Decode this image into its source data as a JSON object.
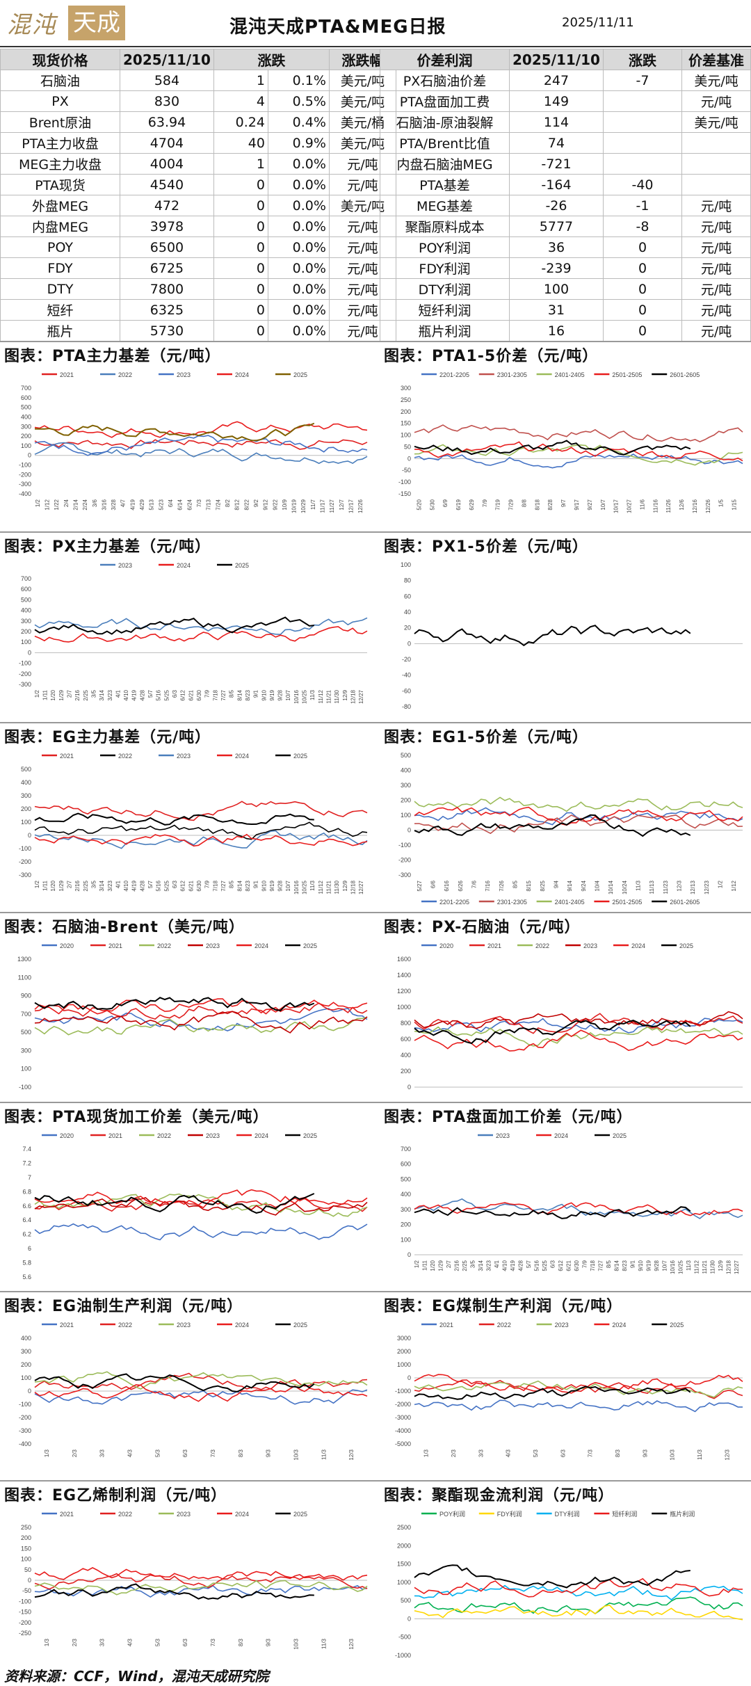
{
  "header": {
    "logo_text_1": "混沌",
    "logo_text_2": "天成",
    "title": "混沌天成PTA&MEG日报",
    "date": "2025/11/11"
  },
  "left_table": {
    "headers": [
      "现货价格",
      "2025/11/10",
      "涨跌",
      "",
      "涨跌幅"
    ],
    "rows": [
      [
        "石脑油",
        "584",
        "1",
        "0.1%",
        "美元/吨"
      ],
      [
        "PX",
        "830",
        "4",
        "0.5%",
        "美元/吨"
      ],
      [
        "Brent原油",
        "63.94",
        "0.24",
        "0.4%",
        "美元/桶"
      ],
      [
        "PTA主力收盘",
        "4704",
        "40",
        "0.9%",
        "美元/吨"
      ],
      [
        "MEG主力收盘",
        "4004",
        "1",
        "0.0%",
        "元/吨"
      ],
      [
        "PTA现货",
        "4540",
        "0",
        "0.0%",
        "元/吨"
      ],
      [
        "外盘MEG",
        "472",
        "0",
        "0.0%",
        "美元/吨"
      ],
      [
        "内盘MEG",
        "3978",
        "0",
        "0.0%",
        "元/吨"
      ],
      [
        "POY",
        "6500",
        "0",
        "0.0%",
        "元/吨"
      ],
      [
        "FDY",
        "6725",
        "0",
        "0.0%",
        "元/吨"
      ],
      [
        "DTY",
        "7800",
        "0",
        "0.0%",
        "元/吨"
      ],
      [
        "短纤",
        "6325",
        "0",
        "0.0%",
        "元/吨"
      ],
      [
        "瓶片",
        "5730",
        "0",
        "0.0%",
        "元/吨"
      ]
    ]
  },
  "right_table": {
    "headers": [
      "价差利润",
      "2025/11/10",
      "涨跌",
      "价差基准"
    ],
    "rows": [
      [
        "PX石脑油价差",
        "247",
        "-7",
        "美元/吨"
      ],
      [
        "PTA盘面加工费",
        "149",
        "",
        "元/吨"
      ],
      [
        "石脑油-原油裂解",
        "114",
        "",
        "美元/吨"
      ],
      [
        "PTA/Brent比值",
        "74",
        "",
        ""
      ],
      [
        "内盘石脑油MEG",
        "-721",
        "",
        ""
      ],
      [
        "PTA基差",
        "-164",
        "-40",
        ""
      ],
      [
        "MEG基差",
        "-26",
        "-1",
        "元/吨"
      ],
      [
        "聚酯原料成本",
        "5777",
        "-8",
        "元/吨"
      ],
      [
        "POY利润",
        "36",
        "0",
        "元/吨"
      ],
      [
        "FDY利润",
        "-239",
        "0",
        "元/吨"
      ],
      [
        "DTY利润",
        "100",
        "0",
        "元/吨"
      ],
      [
        "短纤利润",
        "31",
        "0",
        "元/吨"
      ],
      [
        "瓶片利润",
        "16",
        "0",
        "元/吨"
      ]
    ]
  },
  "sections": [
    "图表：PTA主力基差（元/吨）",
    "图表：PTA1-5价差（元/吨）",
    "图表：PX主力基差（元/吨）",
    "图表：PX1-5价差（元/吨）",
    "图表：EG主力基差（元/吨）",
    "图表：EG1-5价差（元/吨）",
    "图表：石脑油-Brent（美元/吨）",
    "图表：PX-石脑油（元/吨）",
    "图表：PTA现货加工价差（美元/吨）",
    "图表：PTA盘面加工价差（元/吨）",
    "图表：EG油制生产利润（元/吨）",
    "图表：EG煤制生产利润（元/吨）",
    "图表：EG乙烯制利润（元/吨）",
    "图表：聚酯现金流利润（元/吨）"
  ],
  "source": "资料来源：CCF，Wind，混沌天成研究院",
  "colors": {
    "2020": "#4472c4",
    "2021": "#e02020",
    "2022": "#9bbb59",
    "2023": "#4a7ebb",
    "2024": "#e81c1c",
    "2025": "#000000",
    "alt": "#7f6000",
    "orange": "#ed7d31",
    "yellow": "#ffd700",
    "green": "#00b050",
    "cyan": "#00b0f0"
  },
  "chart_data": [
    {
      "type": "line",
      "legend": [
        "2021",
        "2022",
        "2023",
        "2024",
        "2025"
      ],
      "yticks": [
        700,
        600,
        500,
        400,
        300,
        200,
        100,
        0,
        -100,
        -200,
        -300,
        -400
      ],
      "ylim": [
        -400,
        700
      ],
      "xticks": [
        "1/2",
        "1/12",
        "1/22",
        "2/4",
        "2/14",
        "2/24",
        "3/6",
        "3/16",
        "3/28",
        "4/7",
        "4/19",
        "4/29",
        "5/13",
        "5/23",
        "6/4",
        "6/14",
        "6/24",
        "7/3",
        "7/13",
        "7/24",
        "8/2",
        "8/12",
        "8/22",
        "9/2",
        "9/12",
        "9/22",
        "10/9",
        "10/19",
        "10/29",
        "11/7",
        "11/17",
        "11/27",
        "12/7",
        "12/17",
        "12/26"
      ],
      "series_colors": [
        "#e02020",
        "#4a7ebb",
        "#4472c4",
        "#e81c1c",
        "#7f6000"
      ]
    },
    {
      "type": "line",
      "legend": [
        "2201-2205",
        "2301-2305",
        "2401-2405",
        "2501-2505",
        "2601-2605"
      ],
      "yticks": [
        300,
        250,
        200,
        150,
        100,
        50,
        0,
        -50,
        -100,
        -150
      ],
      "ylim": [
        -150,
        300
      ],
      "xticks": [
        "5/20",
        "5/30",
        "6/9",
        "6/19",
        "6/29",
        "7/9",
        "7/19",
        "7/29",
        "8/8",
        "8/18",
        "8/28",
        "9/7",
        "9/17",
        "9/27",
        "10/7",
        "10/17",
        "10/27",
        "11/6",
        "11/16",
        "11/26",
        "12/6",
        "12/16",
        "12/26",
        "1/5",
        "1/15"
      ],
      "series_colors": [
        "#4472c4",
        "#c0504d",
        "#9bbb59",
        "#e81c1c",
        "#000000"
      ]
    },
    {
      "type": "line",
      "legend": [
        "2023",
        "2024",
        "2025"
      ],
      "yticks": [
        700,
        600,
        500,
        400,
        300,
        200,
        100,
        0,
        -100,
        -200,
        -300
      ],
      "ylim": [
        -300,
        700
      ],
      "xticks": [
        "1/2",
        "1/11",
        "1/20",
        "1/29",
        "2/7",
        "2/16",
        "2/25",
        "3/5",
        "3/14",
        "3/23",
        "4/1",
        "4/10",
        "4/19",
        "4/28",
        "5/7",
        "5/16",
        "5/25",
        "6/3",
        "6/12",
        "6/21",
        "6/30",
        "7/9",
        "7/18",
        "7/27",
        "8/5",
        "8/14",
        "8/23",
        "9/1",
        "9/10",
        "9/19",
        "9/28",
        "10/7",
        "10/16",
        "10/25",
        "11/3",
        "11/12",
        "11/21",
        "11/30",
        "12/9",
        "12/18",
        "12/27"
      ],
      "series_colors": [
        "#4a7ebb",
        "#e81c1c",
        "#000000"
      ]
    },
    {
      "type": "line",
      "legend": [],
      "yticks": [
        100,
        80,
        60,
        40,
        20,
        0,
        -20,
        -40,
        -60,
        -80
      ],
      "ylim": [
        -80,
        100
      ],
      "xticks": [],
      "series_colors": [
        "#000000"
      ]
    },
    {
      "type": "line",
      "legend": [
        "2021",
        "2022",
        "2023",
        "2024",
        "2025"
      ],
      "yticks": [
        500,
        400,
        300,
        200,
        100,
        0,
        -100,
        -200,
        -300
      ],
      "ylim": [
        -300,
        500
      ],
      "xticks": [
        "1/2",
        "1/11",
        "1/20",
        "1/29",
        "2/7",
        "2/16",
        "2/25",
        "3/5",
        "3/14",
        "3/23",
        "4/1",
        "4/10",
        "4/19",
        "4/28",
        "5/7",
        "5/16",
        "5/25",
        "6/3",
        "6/12",
        "6/21",
        "6/30",
        "7/9",
        "7/18",
        "7/27",
        "8/5",
        "8/14",
        "8/23",
        "9/1",
        "9/10",
        "9/19",
        "9/28",
        "10/7",
        "10/16",
        "10/25",
        "11/3",
        "11/12",
        "11/21",
        "11/30",
        "12/9",
        "12/18",
        "12/27"
      ],
      "series_colors": [
        "#e02020",
        "#000000",
        "#4a7ebb",
        "#e81c1c",
        "#000000"
      ]
    },
    {
      "type": "line",
      "legend": [
        "2201-2205",
        "2301-2305",
        "2401-2405",
        "2501-2505",
        "2601-2605"
      ],
      "yticks": [
        500,
        400,
        300,
        200,
        100,
        0,
        -100,
        -200,
        -300
      ],
      "ylim": [
        -300,
        500
      ],
      "xticks": [
        "5/27",
        "6/6",
        "6/16",
        "6/26",
        "7/6",
        "7/16",
        "7/26",
        "8/5",
        "8/15",
        "8/25",
        "9/4",
        "9/14",
        "9/24",
        "10/4",
        "10/14",
        "10/24",
        "11/3",
        "11/13",
        "11/23",
        "12/3",
        "12/13",
        "12/23",
        "1/2",
        "1/12"
      ],
      "series_colors": [
        "#4472c4",
        "#c0504d",
        "#9bbb59",
        "#e81c1c",
        "#000000"
      ]
    },
    {
      "type": "line",
      "legend": [
        "2020",
        "2021",
        "2022",
        "2023",
        "2024",
        "2025"
      ],
      "yticks": [
        1300,
        1100,
        900,
        700,
        500,
        300,
        100,
        -100
      ],
      "ylim": [
        -100,
        1300
      ],
      "xticks": [],
      "series_colors": [
        "#4472c4",
        "#e02020",
        "#9bbb59",
        "#c00000",
        "#e81c1c",
        "#000000"
      ]
    },
    {
      "type": "line",
      "legend": [
        "2020",
        "2021",
        "2022",
        "2023",
        "2024",
        "2025"
      ],
      "yticks": [
        1600,
        1400,
        1200,
        1000,
        800,
        600,
        400,
        200,
        0
      ],
      "ylim": [
        0,
        1600
      ],
      "xticks": [],
      "series_colors": [
        "#4472c4",
        "#e02020",
        "#9bbb59",
        "#c00000",
        "#e81c1c",
        "#000000"
      ]
    },
    {
      "type": "line",
      "legend": [
        "2020",
        "2021",
        "2022",
        "2023",
        "2024",
        "2025"
      ],
      "yticks": [
        7.4,
        7.2,
        7,
        6.8,
        6.6,
        6.4,
        6.2,
        6,
        5.8,
        5.6
      ],
      "ylim": [
        5.6,
        7.4
      ],
      "xticks": [],
      "series_colors": [
        "#4472c4",
        "#e02020",
        "#9bbb59",
        "#c00000",
        "#e81c1c",
        "#000000"
      ]
    },
    {
      "type": "line",
      "legend": [
        "2023",
        "2024",
        "2025"
      ],
      "yticks": [
        700,
        600,
        500,
        400,
        300,
        200,
        100,
        0
      ],
      "ylim": [
        0,
        700
      ],
      "xticks": [
        "1/2",
        "1/11",
        "1/20",
        "1/29",
        "2/7",
        "2/16",
        "2/25",
        "3/5",
        "3/14",
        "3/23",
        "4/1",
        "4/10",
        "4/19",
        "4/28",
        "5/7",
        "5/16",
        "5/25",
        "6/3",
        "6/12",
        "6/21",
        "6/30",
        "7/9",
        "7/18",
        "7/27",
        "8/5",
        "8/14",
        "8/23",
        "9/1",
        "9/10",
        "9/19",
        "9/28",
        "10/7",
        "10/16",
        "10/25",
        "11/3",
        "11/12",
        "11/21",
        "11/30",
        "12/9",
        "12/18",
        "12/27"
      ],
      "series_colors": [
        "#4a7ebb",
        "#e81c1c",
        "#000000"
      ]
    },
    {
      "type": "line",
      "legend": [
        "2021",
        "2022",
        "2023",
        "2024",
        "2025"
      ],
      "yticks": [
        400,
        300,
        200,
        100,
        0,
        -100,
        -200,
        -300,
        -400
      ],
      "ylim": [
        -400,
        400
      ],
      "xticks": [
        "1/3",
        "2/3",
        "3/3",
        "4/3",
        "5/3",
        "6/3",
        "7/3",
        "8/3",
        "9/3",
        "10/3",
        "11/3",
        "12/3"
      ],
      "series_colors": [
        "#4472c4",
        "#e02020",
        "#9bbb59",
        "#e81c1c",
        "#000000"
      ]
    },
    {
      "type": "line",
      "legend": [
        "2021",
        "2022",
        "2023",
        "2024",
        "2025"
      ],
      "yticks": [
        3000,
        2000,
        1000,
        0,
        -1000,
        -2000,
        -3000,
        -4000,
        -5000
      ],
      "ylim": [
        -5000,
        3000
      ],
      "xticks": [
        "1/3",
        "2/3",
        "3/3",
        "4/3",
        "5/3",
        "6/3",
        "7/3",
        "8/3",
        "9/3",
        "10/3",
        "11/3",
        "12/3"
      ],
      "series_colors": [
        "#4472c4",
        "#e02020",
        "#9bbb59",
        "#e81c1c",
        "#000000"
      ]
    },
    {
      "type": "line",
      "legend": [
        "2021",
        "2022",
        "2023",
        "2024",
        "2025"
      ],
      "yticks": [
        250,
        200,
        150,
        100,
        50,
        0,
        -50,
        -100,
        -150,
        -200,
        -250
      ],
      "ylim": [
        -250,
        250
      ],
      "xticks": [
        "1/3",
        "2/3",
        "3/3",
        "4/3",
        "5/3",
        "6/3",
        "7/3",
        "8/3",
        "9/3",
        "10/3",
        "11/3",
        "12/3"
      ],
      "series_colors": [
        "#4472c4",
        "#e02020",
        "#9bbb59",
        "#e81c1c",
        "#000000"
      ]
    },
    {
      "type": "line",
      "legend": [
        "POY利润",
        "FDY利润",
        "DTY利润",
        "短纤利润",
        "瓶片利润"
      ],
      "yticks": [
        2500,
        2000,
        1500,
        1000,
        500,
        0,
        -500,
        -1000
      ],
      "ylim": [
        -1000,
        2500
      ],
      "xticks": [],
      "series_colors": [
        "#00b050",
        "#ffd700",
        "#00b0f0",
        "#e81c1c",
        "#000000"
      ]
    }
  ]
}
